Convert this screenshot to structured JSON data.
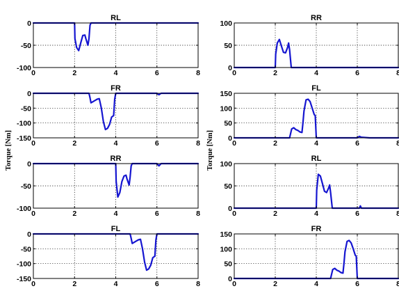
{
  "figure": {
    "ylabel_left": "Torque [Nm]",
    "ylabel_right": "Torque [Nm]",
    "colors": {
      "series": "#1515d0",
      "axes": "#000000",
      "grid": "#000000",
      "background": "#ffffff"
    }
  },
  "chart_data": [
    {
      "type": "line",
      "title": "RL",
      "column": "left",
      "row": 0,
      "xlim": [
        0,
        8
      ],
      "ylim": [
        -100,
        0
      ],
      "xticks": [
        0,
        2,
        4,
        6,
        8
      ],
      "yticks": [
        -100,
        -50,
        0
      ],
      "grid": true,
      "series": [
        {
          "x": [
            0,
            2.0,
            2.02,
            2.1,
            2.2,
            2.3,
            2.4,
            2.5,
            2.55,
            2.65,
            2.7,
            2.75,
            2.8,
            8
          ],
          "y": [
            0,
            0,
            -35,
            -55,
            -62,
            -45,
            -28,
            -27,
            -35,
            -50,
            -35,
            -5,
            0,
            0
          ]
        }
      ]
    },
    {
      "type": "line",
      "title": "RR",
      "column": "right",
      "row": 0,
      "xlim": [
        0,
        8
      ],
      "ylim": [
        0,
        100
      ],
      "xticks": [
        0,
        2,
        4,
        6,
        8
      ],
      "yticks": [
        0,
        50,
        100
      ],
      "grid": true,
      "series": [
        {
          "x": [
            0,
            2.0,
            2.02,
            2.1,
            2.2,
            2.3,
            2.4,
            2.5,
            2.6,
            2.65,
            2.7,
            2.78,
            8
          ],
          "y": [
            0,
            0,
            30,
            55,
            63,
            48,
            34,
            33,
            45,
            55,
            40,
            0,
            0
          ]
        }
      ]
    },
    {
      "type": "line",
      "title": "FR",
      "column": "left",
      "row": 1,
      "xlim": [
        0,
        8
      ],
      "ylim": [
        -150,
        0
      ],
      "xticks": [
        0,
        2,
        4,
        6,
        8
      ],
      "yticks": [
        -150,
        -100,
        -50,
        0
      ],
      "grid": true,
      "series": [
        {
          "x": [
            0,
            2.7,
            2.75,
            2.8,
            2.9,
            3.0,
            3.1,
            3.2,
            3.3,
            3.4,
            3.5,
            3.6,
            3.7,
            3.8,
            3.9,
            3.95,
            4.0,
            6.0,
            6.1,
            6.2,
            8
          ],
          "y": [
            0,
            0,
            -15,
            -32,
            -28,
            -24,
            -20,
            -18,
            -50,
            -95,
            -122,
            -118,
            -105,
            -80,
            -75,
            -20,
            0,
            0,
            -5,
            0,
            0
          ]
        }
      ]
    },
    {
      "type": "line",
      "title": "FL",
      "column": "right",
      "row": 1,
      "xlim": [
        0,
        8
      ],
      "ylim": [
        0,
        150
      ],
      "xticks": [
        0,
        2,
        4,
        6,
        8
      ],
      "yticks": [
        0,
        50,
        100,
        150
      ],
      "grid": true,
      "series": [
        {
          "x": [
            0,
            2.7,
            2.75,
            2.8,
            2.9,
            3.0,
            3.1,
            3.2,
            3.3,
            3.35,
            3.4,
            3.5,
            3.6,
            3.7,
            3.8,
            3.9,
            3.95,
            4.0,
            6.0,
            6.1,
            6.2,
            6.6,
            8
          ],
          "y": [
            0,
            0,
            15,
            30,
            34,
            28,
            25,
            20,
            18,
            50,
            90,
            128,
            130,
            122,
            100,
            78,
            75,
            0,
            0,
            5,
            2,
            0,
            0
          ]
        }
      ]
    },
    {
      "type": "line",
      "title": "RR",
      "column": "left",
      "row": 2,
      "xlim": [
        0,
        8
      ],
      "ylim": [
        -100,
        0
      ],
      "xticks": [
        0,
        2,
        4,
        6,
        8
      ],
      "yticks": [
        -100,
        -50,
        0
      ],
      "grid": true,
      "series": [
        {
          "x": [
            0,
            4.0,
            4.02,
            4.1,
            4.2,
            4.3,
            4.4,
            4.5,
            4.55,
            4.65,
            4.7,
            4.75,
            4.8,
            6.0,
            6.1,
            6.2,
            8
          ],
          "y": [
            0,
            0,
            -40,
            -75,
            -65,
            -40,
            -28,
            -26,
            -35,
            -48,
            -30,
            -5,
            0,
            0,
            -5,
            0,
            0
          ]
        }
      ]
    },
    {
      "type": "line",
      "title": "RL",
      "column": "right",
      "row": 2,
      "xlim": [
        0,
        8
      ],
      "ylim": [
        0,
        100
      ],
      "xticks": [
        0,
        2,
        4,
        6,
        8
      ],
      "yticks": [
        0,
        50,
        100
      ],
      "grid": true,
      "series": [
        {
          "x": [
            0,
            4.0,
            4.02,
            4.1,
            4.2,
            4.3,
            4.4,
            4.5,
            4.6,
            4.65,
            4.7,
            4.78,
            6.1,
            6.15,
            6.2,
            8
          ],
          "y": [
            0,
            0,
            40,
            76,
            72,
            55,
            38,
            35,
            45,
            52,
            35,
            0,
            0,
            5,
            0,
            0
          ]
        }
      ]
    },
    {
      "type": "line",
      "title": "FL",
      "column": "left",
      "row": 3,
      "xlim": [
        0,
        8
      ],
      "ylim": [
        -150,
        0
      ],
      "xticks": [
        0,
        2,
        4,
        6,
        8
      ],
      "yticks": [
        -150,
        -100,
        -50,
        0
      ],
      "grid": true,
      "series": [
        {
          "x": [
            0,
            4.7,
            4.75,
            4.8,
            4.9,
            5.0,
            5.1,
            5.2,
            5.3,
            5.4,
            5.5,
            5.6,
            5.7,
            5.8,
            5.9,
            5.95,
            6.0,
            8
          ],
          "y": [
            0,
            0,
            -15,
            -32,
            -28,
            -24,
            -20,
            -18,
            -50,
            -95,
            -122,
            -118,
            -105,
            -80,
            -75,
            -20,
            0,
            0
          ]
        }
      ]
    },
    {
      "type": "line",
      "title": "FR",
      "column": "right",
      "row": 3,
      "xlim": [
        0,
        8
      ],
      "ylim": [
        0,
        150
      ],
      "xticks": [
        0,
        2,
        4,
        6,
        8
      ],
      "yticks": [
        0,
        50,
        100,
        150
      ],
      "grid": true,
      "series": [
        {
          "x": [
            0,
            4.7,
            4.75,
            4.8,
            4.9,
            5.0,
            5.1,
            5.2,
            5.3,
            5.35,
            5.4,
            5.5,
            5.6,
            5.7,
            5.8,
            5.9,
            5.95,
            6.0,
            8
          ],
          "y": [
            0,
            0,
            15,
            30,
            34,
            28,
            25,
            20,
            18,
            50,
            90,
            125,
            128,
            120,
            100,
            78,
            75,
            0,
            0
          ]
        }
      ]
    }
  ]
}
